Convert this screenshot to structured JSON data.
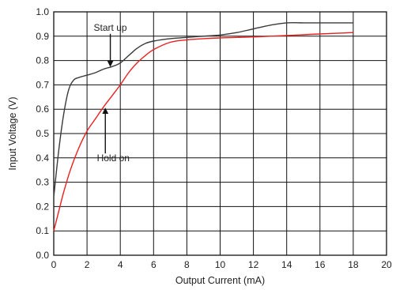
{
  "chart_data": {
    "type": "line",
    "title": "",
    "xlabel": "Output Current (mA)",
    "ylabel": "Input Voltage (V)",
    "xlim": [
      0,
      20
    ],
    "ylim": [
      0,
      1.0
    ],
    "x_ticks": [
      "0",
      "2",
      "4",
      "6",
      "8",
      "10",
      "12",
      "14",
      "16",
      "18",
      "20"
    ],
    "y_ticks": [
      "0.0",
      "0.1",
      "0.2",
      "0.3",
      "0.4",
      "0.5",
      "0.6",
      "0.7",
      "0.8",
      "0.9",
      "1.0"
    ],
    "grid": true,
    "series": [
      {
        "color": "#3a3a3a",
        "x": [
          0,
          0.3,
          0.6,
          0.9,
          1.2,
          1.5,
          2,
          2.5,
          3,
          3.5,
          4,
          4.5,
          5,
          5.5,
          6,
          7,
          8,
          9,
          10,
          11,
          12,
          13,
          14,
          15,
          16,
          17,
          18
        ],
        "y": [
          0.24,
          0.43,
          0.58,
          0.68,
          0.72,
          0.73,
          0.74,
          0.75,
          0.765,
          0.775,
          0.79,
          0.82,
          0.85,
          0.87,
          0.88,
          0.89,
          0.895,
          0.9,
          0.905,
          0.915,
          0.93,
          0.945,
          0.955,
          0.955,
          0.955,
          0.955,
          0.955
        ]
      },
      {
        "color": "#e8201e",
        "x": [
          0,
          0.3,
          0.6,
          1,
          1.5,
          2,
          2.5,
          3,
          3.5,
          4,
          4.5,
          5,
          5.5,
          6,
          7,
          8,
          9,
          10,
          11,
          12,
          13,
          14,
          15,
          16,
          17,
          18
        ],
        "y": [
          0.1,
          0.18,
          0.26,
          0.35,
          0.44,
          0.51,
          0.56,
          0.61,
          0.655,
          0.7,
          0.75,
          0.79,
          0.82,
          0.845,
          0.875,
          0.885,
          0.89,
          0.893,
          0.895,
          0.897,
          0.9,
          0.903,
          0.906,
          0.909,
          0.912,
          0.915
        ]
      }
    ],
    "annotations": [
      {
        "text": "Start up",
        "arrow_to": [
          3.4,
          0.78
        ]
      },
      {
        "text": "Hold on",
        "arrow_to": [
          3.1,
          0.6
        ]
      }
    ]
  }
}
